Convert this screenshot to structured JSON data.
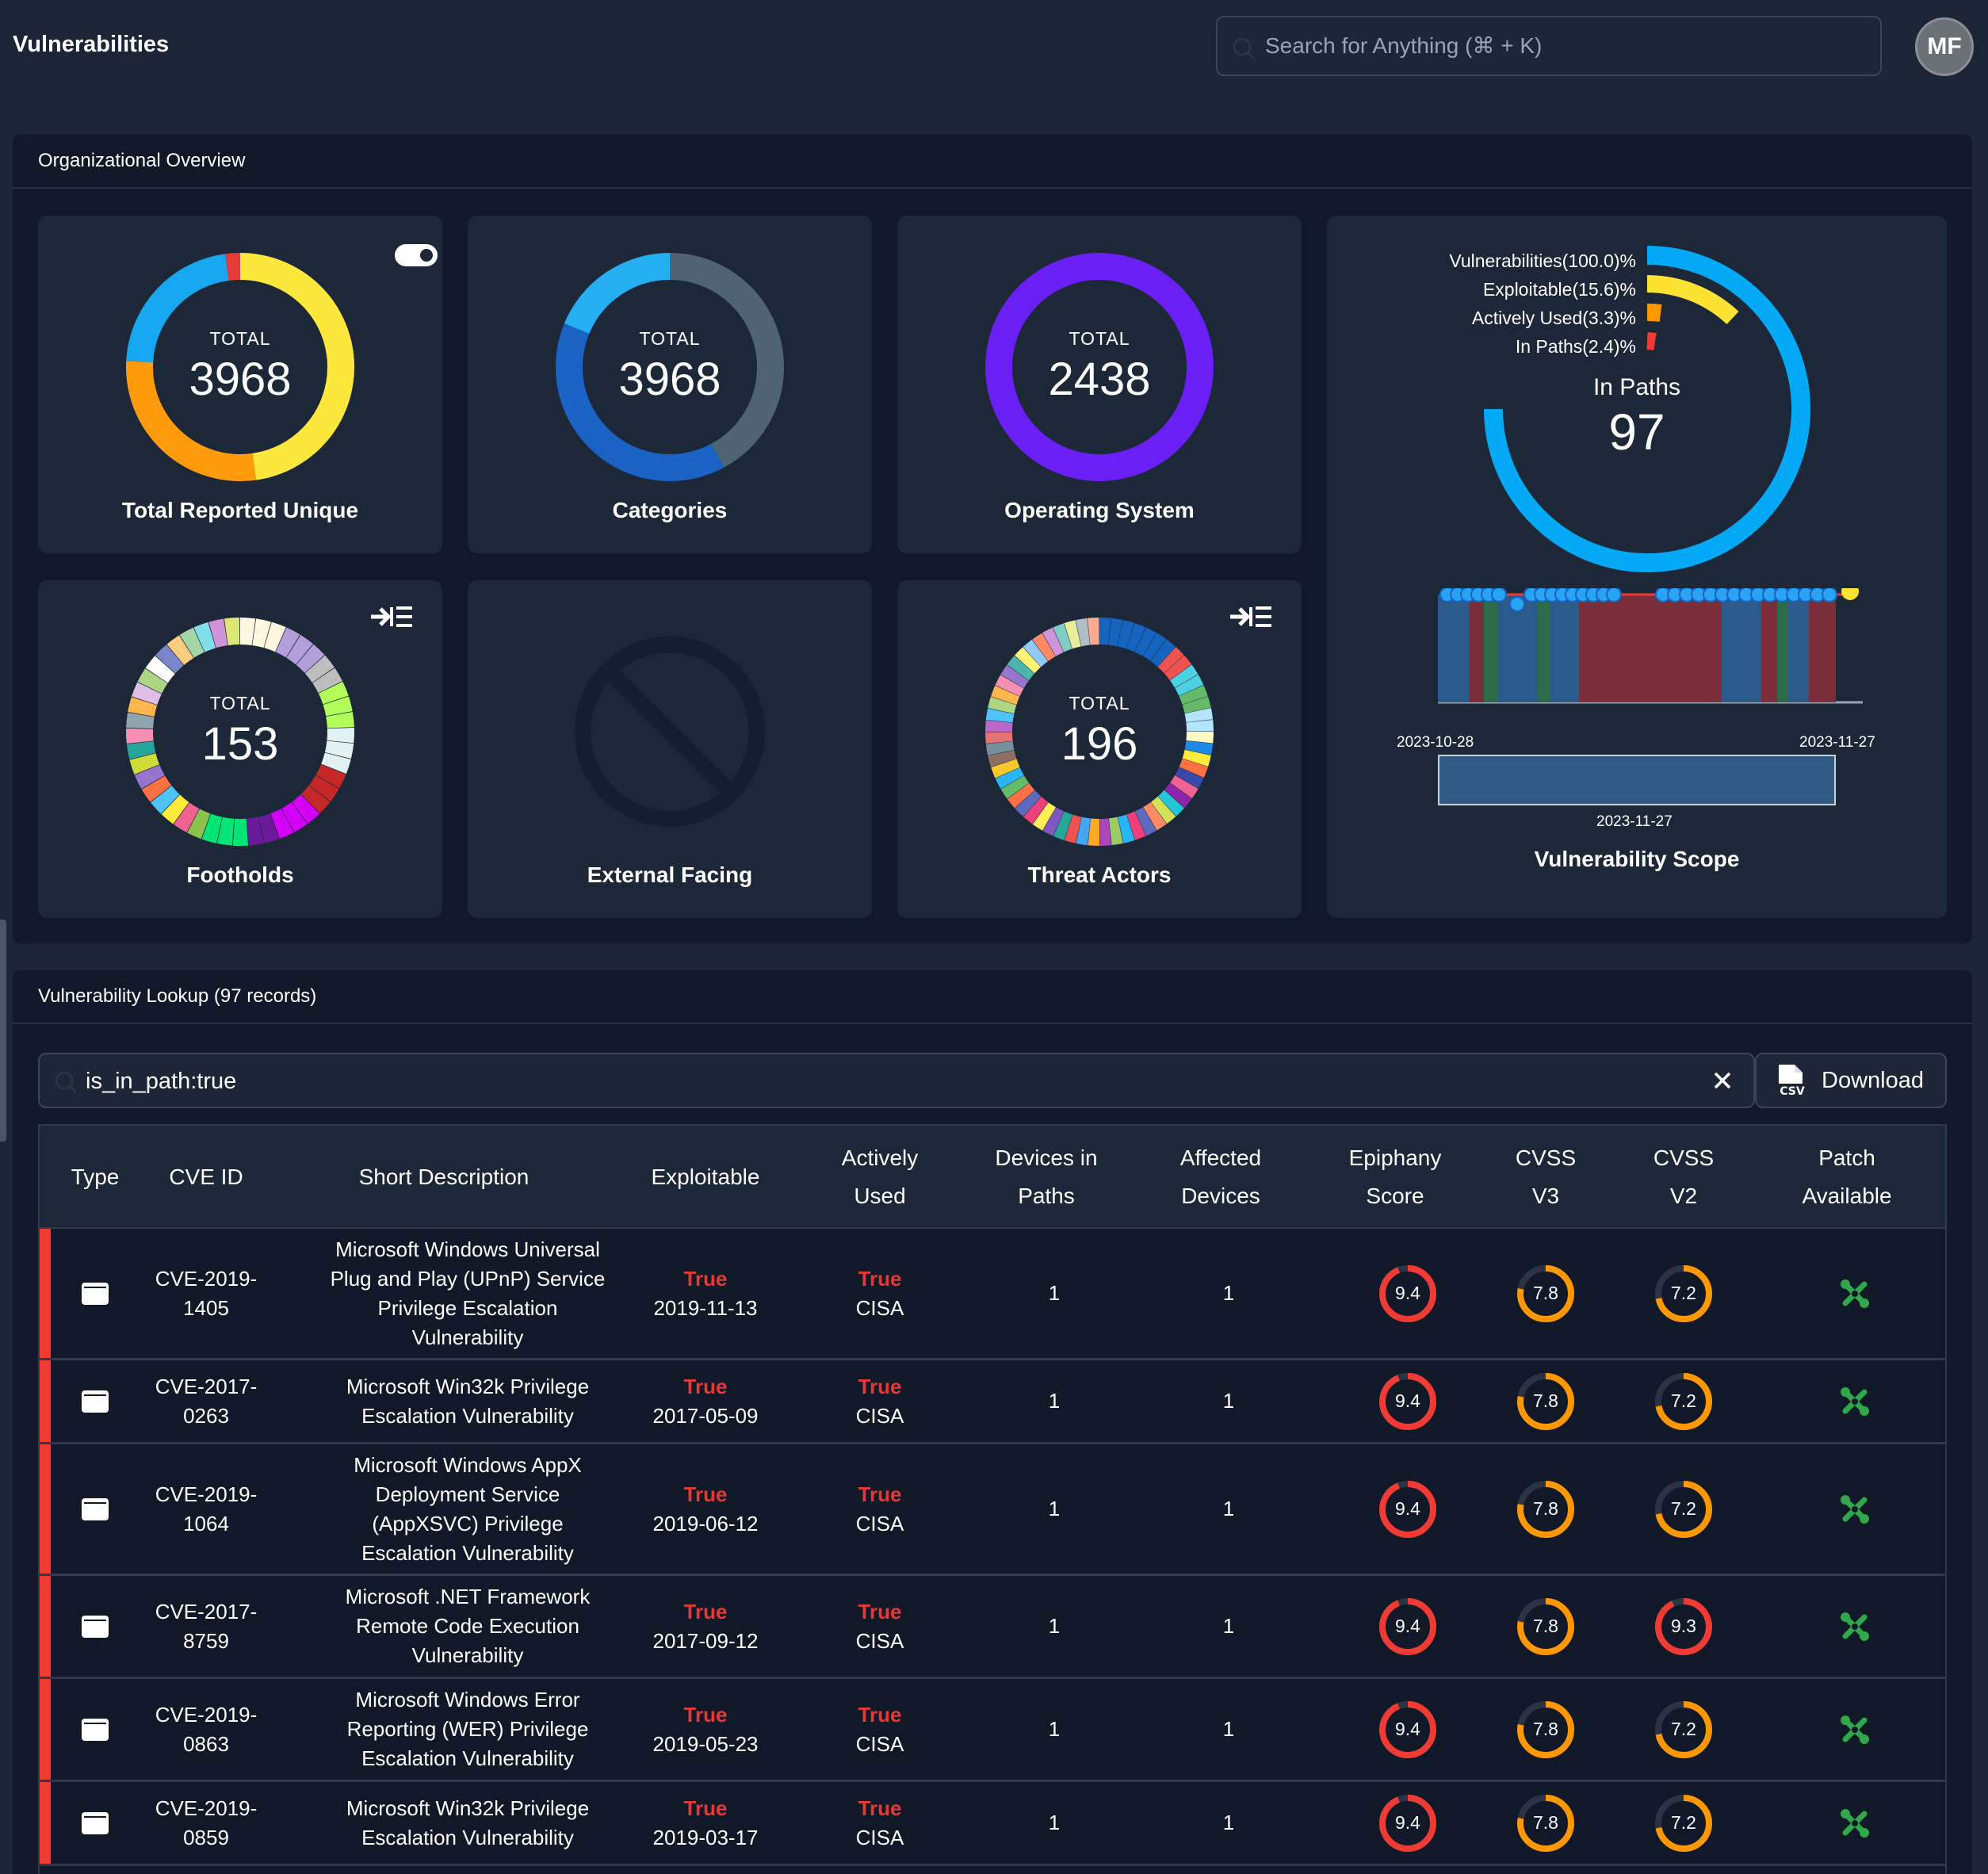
{
  "header": {
    "title": "Vulnerabilities",
    "search_placeholder": "Search for Anything (⌘ + K)",
    "avatar_initials": "MF"
  },
  "overview": {
    "title": "Organizational Overview",
    "cards": {
      "total_reported": {
        "total_label": "TOTAL",
        "total": "3968",
        "label": "Total Reported Unique"
      },
      "categories": {
        "total_label": "TOTAL",
        "total": "3968",
        "label": "Categories"
      },
      "operating_system": {
        "total_label": "TOTAL",
        "total": "2438",
        "label": "Operating System"
      },
      "footholds": {
        "total_label": "TOTAL",
        "total": "153",
        "label": "Footholds"
      },
      "external_facing": {
        "label": "External Facing"
      },
      "threat_actors": {
        "total_label": "TOTAL",
        "total": "196",
        "label": "Threat Actors"
      }
    },
    "scope": {
      "legend": [
        "Vulnerabilities(100.0)%",
        "Exploitable(15.6)%",
        "Actively Used(3.3)%",
        "In Paths(2.4)%"
      ],
      "center_label": "In Paths",
      "center_value": "97",
      "date_start": "2023-10-28",
      "date_end": "2023-11-27",
      "brush_date": "2023-11-27",
      "label": "Vulnerability Scope",
      "colors": {
        "vulnerabilities": "#03a9f4",
        "exploitable": "#fbe233",
        "actively_used": "#ff9800",
        "in_paths": "#ef3b34"
      }
    }
  },
  "lookup": {
    "title": "Vulnerability Lookup (97 records)",
    "filter_value": "is_in_path:true",
    "download_label": "Download",
    "columns": {
      "type": "Type",
      "cve_id": "CVE ID",
      "short_description": "Short Description",
      "exploitable": "Exploitable",
      "actively_used_1": "Actively",
      "actively_used_2": "Used",
      "devices_paths_1": "Devices in",
      "devices_paths_2": "Paths",
      "affected_1": "Affected",
      "affected_2": "Devices",
      "epiphany_1": "Epiphany",
      "epiphany_2": "Score",
      "cvss3_1": "CVSS",
      "cvss3_2": "V3",
      "cvss2_1": "CVSS",
      "cvss2_2": "V2",
      "patch_1": "Patch",
      "patch_2": "Available"
    },
    "rows": [
      {
        "cve": "CVE-2019-1405",
        "desc": "Microsoft Windows Universal Plug and Play (UPnP) Service Privilege Escalation Vulnerability",
        "exploitable": "True",
        "exploit_date": "2019-11-13",
        "actively_used": "True",
        "actively_src": "CISA",
        "devices_in_paths": "1",
        "affected_devices": "1",
        "epiphany": "9.4",
        "cvss_v3": "7.8",
        "cvss_v2": "7.2"
      },
      {
        "cve": "CVE-2017-0263",
        "desc": "Microsoft Win32k Privilege Escalation Vulnerability",
        "exploitable": "True",
        "exploit_date": "2017-05-09",
        "actively_used": "True",
        "actively_src": "CISA",
        "devices_in_paths": "1",
        "affected_devices": "1",
        "epiphany": "9.4",
        "cvss_v3": "7.8",
        "cvss_v2": "7.2"
      },
      {
        "cve": "CVE-2019-1064",
        "desc": "Microsoft Windows AppX Deployment Service (AppXSVC) Privilege Escalation Vulnerability",
        "exploitable": "True",
        "exploit_date": "2019-06-12",
        "actively_used": "True",
        "actively_src": "CISA",
        "devices_in_paths": "1",
        "affected_devices": "1",
        "epiphany": "9.4",
        "cvss_v3": "7.8",
        "cvss_v2": "7.2"
      },
      {
        "cve": "CVE-2017-8759",
        "desc": "Microsoft .NET Framework Remote Code Execution Vulnerability",
        "exploitable": "True",
        "exploit_date": "2017-09-12",
        "actively_used": "True",
        "actively_src": "CISA",
        "devices_in_paths": "1",
        "affected_devices": "1",
        "epiphany": "9.4",
        "cvss_v3": "7.8",
        "cvss_v2": "9.3"
      },
      {
        "cve": "CVE-2019-0863",
        "desc": "Microsoft Windows Error Reporting (WER) Privilege Escalation Vulnerability",
        "exploitable": "True",
        "exploit_date": "2019-05-23",
        "actively_used": "True",
        "actively_src": "CISA",
        "devices_in_paths": "1",
        "affected_devices": "1",
        "epiphany": "9.4",
        "cvss_v3": "7.8",
        "cvss_v2": "7.2"
      },
      {
        "cve": "CVE-2019-0859",
        "desc": "Microsoft Win32k Privilege Escalation Vulnerability",
        "exploitable": "True",
        "exploit_date": "2019-03-17",
        "actively_used": "True",
        "actively_src": "CISA",
        "devices_in_paths": "1",
        "affected_devices": "1",
        "epiphany": "9.4",
        "cvss_v3": "7.8",
        "cvss_v2": "7.2"
      }
    ]
  }
}
